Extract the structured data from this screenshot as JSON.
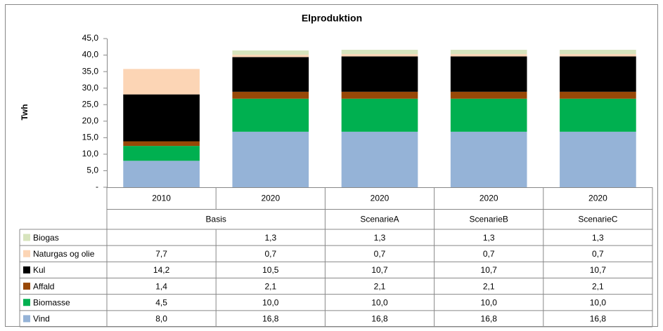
{
  "chart_data": {
    "type": "stacked-bar",
    "title": "Elproduktion",
    "y_label": "Twh",
    "categories": [
      "2010",
      "2020",
      "2020",
      "2020",
      "2020"
    ],
    "groups": [
      "Basis",
      "Basis",
      "ScenarieA",
      "ScenarieB",
      "ScenarieC"
    ],
    "ylim": [
      0,
      45
    ],
    "yticks": [
      {
        "value": 0,
        "label": "-"
      },
      {
        "value": 5,
        "label": "5,0"
      },
      {
        "value": 10,
        "label": "10,0"
      },
      {
        "value": 15,
        "label": "15,0"
      },
      {
        "value": 20,
        "label": "20,0"
      },
      {
        "value": 25,
        "label": "25,0"
      },
      {
        "value": 30,
        "label": "30,0"
      },
      {
        "value": 35,
        "label": "35,0"
      },
      {
        "value": 40,
        "label": "40,0"
      },
      {
        "value": 45,
        "label": "45,0"
      }
    ],
    "grid": false,
    "series": [
      {
        "name": "Biogas",
        "color": "#d7e4bd",
        "values": [
          null,
          1.3,
          1.3,
          1.3,
          1.3
        ],
        "value_labels": [
          null,
          "1,3",
          "1,3",
          "1,3",
          "1,3"
        ]
      },
      {
        "name": "Naturgas og olie",
        "color": "#fcd5b5",
        "values": [
          7.7,
          0.7,
          0.7,
          0.7,
          0.7
        ],
        "value_labels": [
          "7,7",
          "0,7",
          "0,7",
          "0,7",
          "0,7"
        ]
      },
      {
        "name": "Kul",
        "color": "#000000",
        "values": [
          14.2,
          10.5,
          10.7,
          10.7,
          10.7
        ],
        "value_labels": [
          "14,2",
          "10,5",
          "10,7",
          "10,7",
          "10,7"
        ]
      },
      {
        "name": "Affald",
        "color": "#984807",
        "values": [
          1.4,
          2.1,
          2.1,
          2.1,
          2.1
        ],
        "value_labels": [
          "1,4",
          "2,1",
          "2,1",
          "2,1",
          "2,1"
        ]
      },
      {
        "name": "Biomasse",
        "color": "#00b050",
        "values": [
          4.5,
          10.0,
          10.0,
          10.0,
          10.0
        ],
        "value_labels": [
          "4,5",
          "10,0",
          "10,0",
          "10,0",
          "10,0"
        ]
      },
      {
        "name": "Vind",
        "color": "#95b3d7",
        "values": [
          8.0,
          16.8,
          16.8,
          16.8,
          16.8
        ],
        "value_labels": [
          "8,0",
          "16,8",
          "16,8",
          "16,8",
          "16,8"
        ]
      }
    ]
  }
}
